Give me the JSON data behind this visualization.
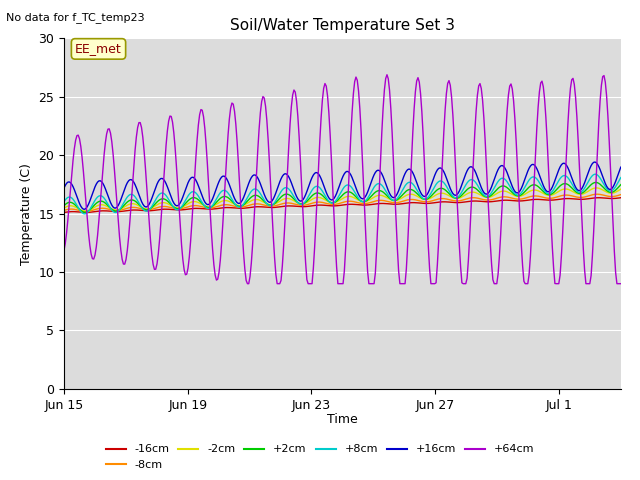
{
  "title": "Soil/Water Temperature Set 3",
  "xlabel": "Time",
  "ylabel": "Temperature (C)",
  "top_left_text": "No data for f_TC_temp23",
  "annotation_box": "EE_met",
  "ylim": [
    0,
    30
  ],
  "yticks": [
    0,
    5,
    10,
    15,
    20,
    25,
    30
  ],
  "background_color": "#dcdcdc",
  "outer_background": "#ffffff",
  "grid_color": "#ffffff",
  "colors": {
    "-16cm": "#cc0000",
    "-8cm": "#ff8c00",
    "-2cm": "#e0e000",
    "+2cm": "#00cc00",
    "+8cm": "#00cccc",
    "+16cm": "#0000cc",
    "+64cm": "#aa00cc"
  },
  "tick_positions": [
    0,
    4,
    8,
    12,
    16
  ],
  "tick_labels": [
    "Jun 15",
    "Jun 19",
    "Jun 23",
    "Jun 27",
    "Jul 1"
  ],
  "xlim": [
    0,
    18
  ]
}
